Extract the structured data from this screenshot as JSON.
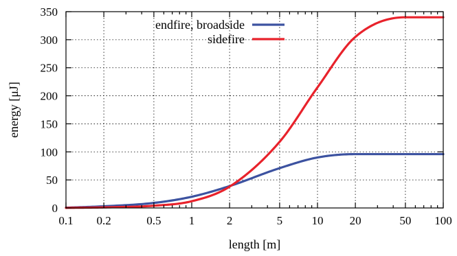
{
  "chart_data": {
    "type": "line",
    "xlabel": "length [m]",
    "ylabel": "energy [μJ]",
    "xscale": "log",
    "xlim": [
      0.1,
      100
    ],
    "ylim": [
      0,
      350
    ],
    "grid": true,
    "legend_position": "top-center",
    "x_ticks": [
      0.1,
      0.2,
      0.5,
      1,
      2,
      5,
      10,
      20,
      50,
      100
    ],
    "x_tick_labels": [
      "0.1",
      "0.2",
      "0.5",
      "1",
      "2",
      "5",
      "10",
      "20",
      "50",
      "100"
    ],
    "y_ticks": [
      0,
      50,
      100,
      150,
      200,
      250,
      300,
      350
    ],
    "y_tick_labels": [
      "0",
      "50",
      "100",
      "150",
      "200",
      "250",
      "300",
      "350"
    ],
    "series": [
      {
        "name": "endfire, broadside",
        "color": "#3c52a0",
        "x": [
          0.1,
          0.2,
          0.5,
          1,
          2,
          5,
          10,
          20,
          50,
          100
        ],
        "y": [
          0.5,
          3,
          9,
          20,
          39,
          71,
          90,
          96,
          96,
          96
        ]
      },
      {
        "name": "sidefire",
        "color": "#e8222b",
        "x": [
          0.1,
          0.2,
          0.5,
          1,
          2,
          5,
          10,
          20,
          50,
          100
        ],
        "y": [
          0.2,
          1,
          4,
          12,
          38,
          118,
          215,
          305,
          340,
          340
        ]
      }
    ]
  }
}
